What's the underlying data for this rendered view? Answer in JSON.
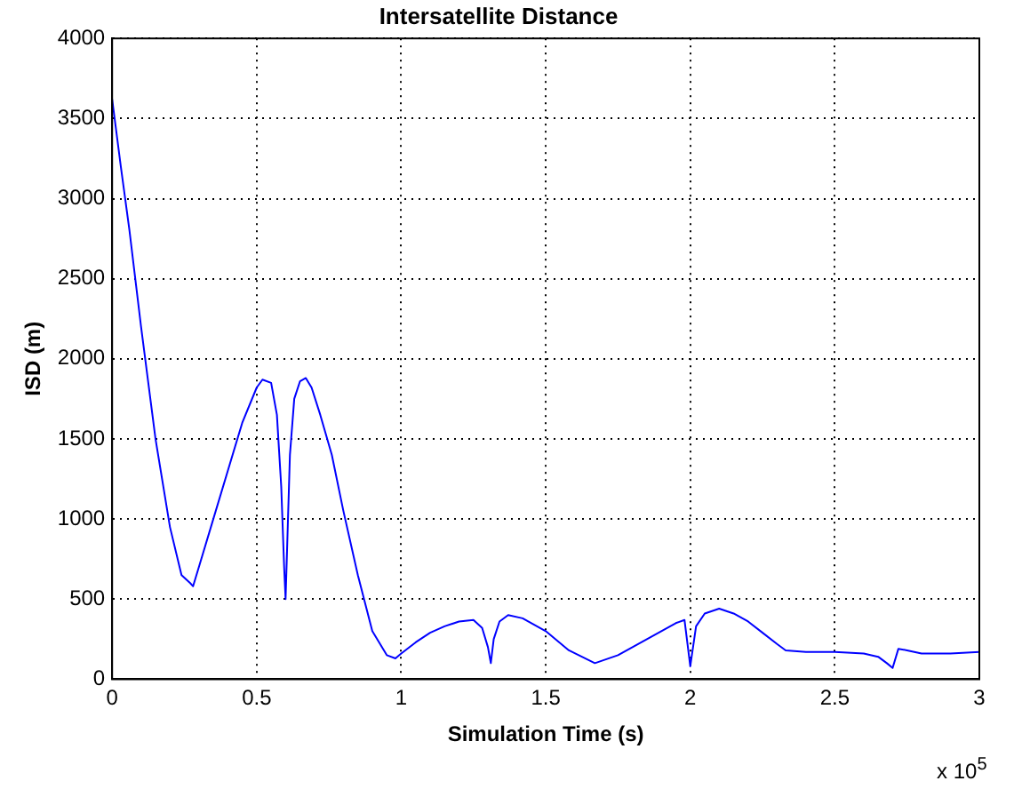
{
  "chart_data": {
    "type": "line",
    "title": "Intersatellite Distance",
    "xlabel": "Simulation Time (s)",
    "ylabel": "ISD (m)",
    "annotations": [
      "x 10$^{5}$"
    ],
    "x": [
      0,
      0.03,
      0.06,
      0.1,
      0.15,
      0.2,
      0.24,
      0.27,
      0.28,
      0.3,
      0.35,
      0.4,
      0.45,
      0.5,
      0.52,
      0.55,
      0.57,
      0.585,
      0.595,
      0.6,
      0.605,
      0.615,
      0.63,
      0.65,
      0.67,
      0.69,
      0.72,
      0.76,
      0.8,
      0.85,
      0.9,
      0.95,
      0.98,
      1.0,
      1.05,
      1.1,
      1.15,
      1.2,
      1.25,
      1.28,
      1.3,
      1.31,
      1.32,
      1.34,
      1.37,
      1.42,
      1.5,
      1.58,
      1.67,
      1.75,
      1.85,
      1.95,
      1.98,
      2.0,
      2.02,
      2.05,
      2.1,
      2.15,
      2.2,
      2.25,
      2.3,
      2.33,
      2.4,
      2.5,
      2.6,
      2.65,
      2.68,
      2.7,
      2.72,
      2.75,
      2.8,
      2.9,
      3.0
    ],
    "series": [
      {
        "color": "#0000ff",
        "values": [
          3620,
          3200,
          2800,
          2200,
          1500,
          950,
          650,
          600,
          580,
          700,
          1000,
          1300,
          1600,
          1820,
          1870,
          1850,
          1650,
          1200,
          700,
          500,
          800,
          1400,
          1750,
          1860,
          1880,
          1820,
          1650,
          1400,
          1050,
          650,
          300,
          150,
          130,
          160,
          230,
          290,
          330,
          360,
          370,
          320,
          200,
          100,
          250,
          360,
          400,
          380,
          300,
          180,
          100,
          150,
          250,
          350,
          370,
          80,
          330,
          410,
          440,
          410,
          360,
          290,
          220,
          180,
          170,
          170,
          160,
          140,
          100,
          70,
          190,
          180,
          160,
          160,
          170
        ]
      }
    ],
    "xlim": [
      0,
      3
    ],
    "xticks": [
      0,
      0.5,
      1,
      1.5,
      2,
      2.5,
      3
    ],
    "ylim": [
      0,
      4000
    ],
    "yticks": [
      0,
      500,
      1000,
      1500,
      2000,
      2500,
      3000,
      3500,
      4000
    ],
    "grid": true,
    "line_style": "solid",
    "marker": "none",
    "legend": false
  }
}
